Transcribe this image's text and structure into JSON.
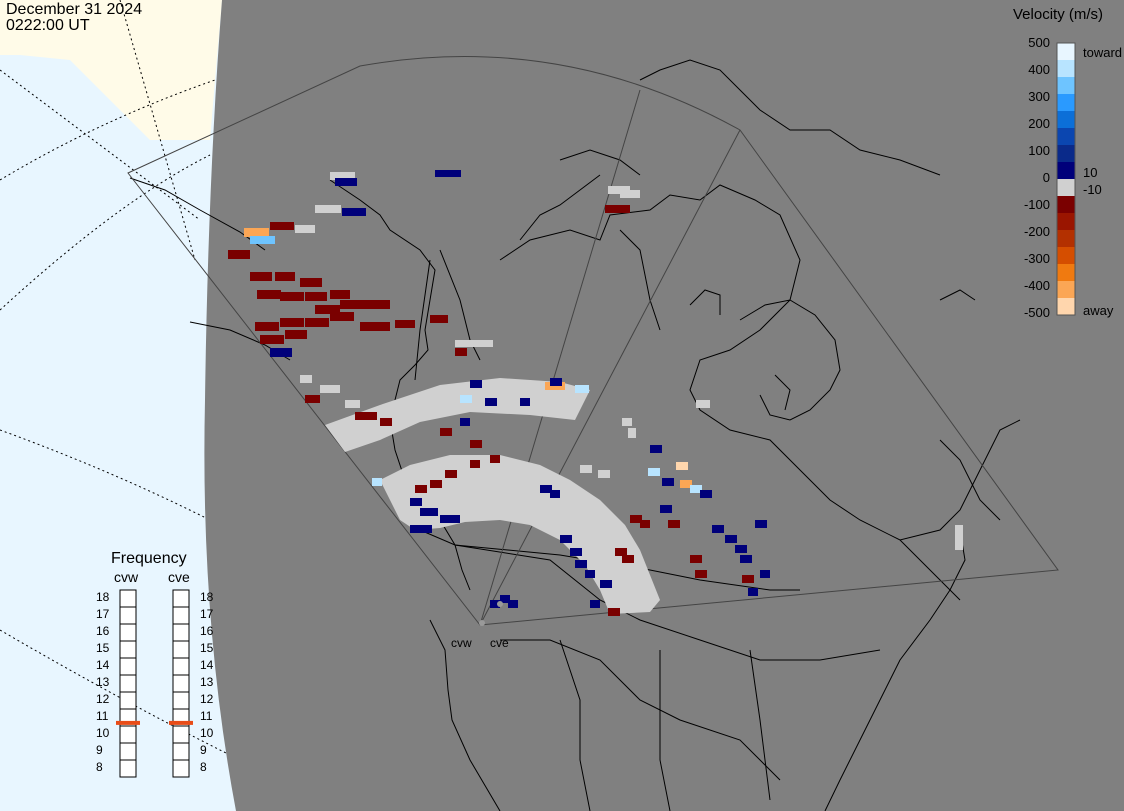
{
  "header": {
    "date": "December 31 2024",
    "time": "0222:00 UT"
  },
  "colorbar": {
    "title": "Velocity (m/s)",
    "ticks": [
      "500",
      "400",
      "300",
      "200",
      "100",
      "0",
      "-100",
      "-200",
      "-300",
      "-400",
      "-500"
    ],
    "toward_label": "toward",
    "away_label": "away",
    "inner_pos": "10",
    "inner_neg": "-10",
    "stops": [
      "#e8f6ff",
      "#b8e4ff",
      "#6ec4ff",
      "#2a9aff",
      "#0c6fd8",
      "#0b46b0",
      "#0a2a8a",
      "#00007a",
      "#d0d0d0",
      "#7a0000",
      "#9a1500",
      "#b33000",
      "#d54e00",
      "#f07a10",
      "#fba655",
      "#ffd6ad"
    ]
  },
  "frequency": {
    "title": "Frequency",
    "radars": [
      {
        "name": "cvw",
        "selected": "11"
      },
      {
        "name": "cve",
        "selected": "11"
      }
    ],
    "levels": [
      "18",
      "17",
      "16",
      "15",
      "14",
      "13",
      "12",
      "11",
      "10",
      "9",
      "8"
    ],
    "indicator_color": "#e84c18"
  },
  "map": {
    "background": "#808080",
    "outside_color": "#e8f6ff",
    "ice_color": "#fffbe8",
    "coastline_color": "#000000",
    "ground_scatter_color": "#d0d0d0",
    "radar_sites": [
      "cvw",
      "cve"
    ]
  }
}
